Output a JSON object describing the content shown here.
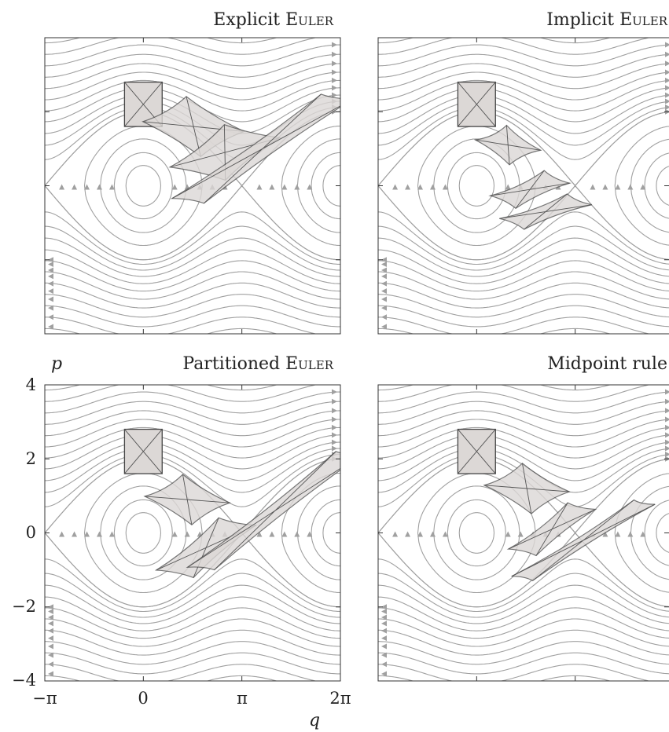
{
  "chart_data": [
    {
      "type": "line",
      "title": "Explicit Euler",
      "xlim": [
        -3.14159,
        6.28318
      ],
      "ylim": [
        -4,
        4
      ],
      "xticks": [
        -3.14159,
        0,
        3.14159,
        6.28318
      ],
      "yticks": [
        -4,
        -2,
        0,
        2,
        4
      ],
      "initial_set": {
        "q": [
          -0.6,
          0.6
        ],
        "p": [
          1.6,
          2.8
        ]
      },
      "phase_sets": [
        {
          "q": 1.6,
          "p": 1.6,
          "w": 1.6,
          "h": 1.6,
          "tilt": 30
        },
        {
          "q": 2.6,
          "p": 0.9,
          "w": 2.2,
          "h": 1.2,
          "tilt": 38
        },
        {
          "q": 3.8,
          "p": 1.0,
          "w": 5.8,
          "h": 0.6,
          "tilt": 35
        }
      ]
    },
    {
      "type": "line",
      "title": "Implicit Euler",
      "xlim": [
        -3.14159,
        6.28318
      ],
      "ylim": [
        -4,
        4
      ],
      "initial_set": {
        "q": [
          -0.6,
          0.6
        ],
        "p": [
          1.6,
          2.8
        ]
      },
      "phase_sets": [
        {
          "q": 1.0,
          "p": 1.1,
          "w": 1.1,
          "h": 1.0,
          "tilt": 25
        },
        {
          "q": 1.7,
          "p": -0.1,
          "w": 1.9,
          "h": 0.6,
          "tilt": 25
        },
        {
          "q": 2.2,
          "p": -0.7,
          "w": 2.3,
          "h": 0.5,
          "tilt": 20
        }
      ]
    },
    {
      "type": "line",
      "title": "Partitioned Euler",
      "xlabel": "q",
      "ylabel": "p",
      "xlim": [
        -3.14159,
        6.28318
      ],
      "ylim": [
        -4,
        4
      ],
      "xtick_labels": [
        "−π",
        "0",
        "π",
        "2π"
      ],
      "ytick_labels": [
        "−4",
        "−2",
        "0",
        "2",
        "4"
      ],
      "initial_set": {
        "q": [
          -0.6,
          0.6
        ],
        "p": [
          1.6,
          2.8
        ]
      },
      "phase_sets": [
        {
          "q": 1.4,
          "p": 0.9,
          "w": 1.4,
          "h": 1.3,
          "tilt": 30
        },
        {
          "q": 2.0,
          "p": -0.4,
          "w": 2.6,
          "h": 0.8,
          "tilt": 40
        },
        {
          "q": 4.2,
          "p": 0.6,
          "w": 6.0,
          "h": 0.5,
          "tilt": 38
        }
      ]
    },
    {
      "type": "line",
      "title": "Midpoint rule",
      "xlim": [
        -3.14159,
        6.28318
      ],
      "ylim": [
        -4,
        4
      ],
      "initial_set": {
        "q": [
          -0.6,
          0.6
        ],
        "p": [
          1.6,
          2.8
        ]
      },
      "phase_sets": [
        {
          "q": 1.6,
          "p": 1.2,
          "w": 1.4,
          "h": 1.3,
          "tilt": 30
        },
        {
          "q": 2.4,
          "p": 0.1,
          "w": 2.4,
          "h": 0.6,
          "tilt": 38
        },
        {
          "q": 3.4,
          "p": -0.2,
          "w": 4.6,
          "h": 0.4,
          "tilt": 32
        }
      ]
    }
  ],
  "panels": [
    {
      "title_main": "Explicit ",
      "title_sc": "Euler"
    },
    {
      "title_main": "Implicit ",
      "title_sc": "Euler"
    },
    {
      "title_main": "Partitioned ",
      "title_sc": "Euler"
    },
    {
      "title_main": "Midpoint rule",
      "title_sc": ""
    }
  ],
  "axes": {
    "xlabel": "q",
    "ylabel": "p",
    "xtick_labels": [
      "−π",
      "0",
      "π",
      "2π"
    ],
    "ytick_labels": [
      "−4",
      "−2",
      "0",
      "2",
      "4"
    ]
  },
  "colors": {
    "stream": "#a0a0a0",
    "set_fill": "#dcd8d6",
    "set_stroke": "#555555"
  }
}
